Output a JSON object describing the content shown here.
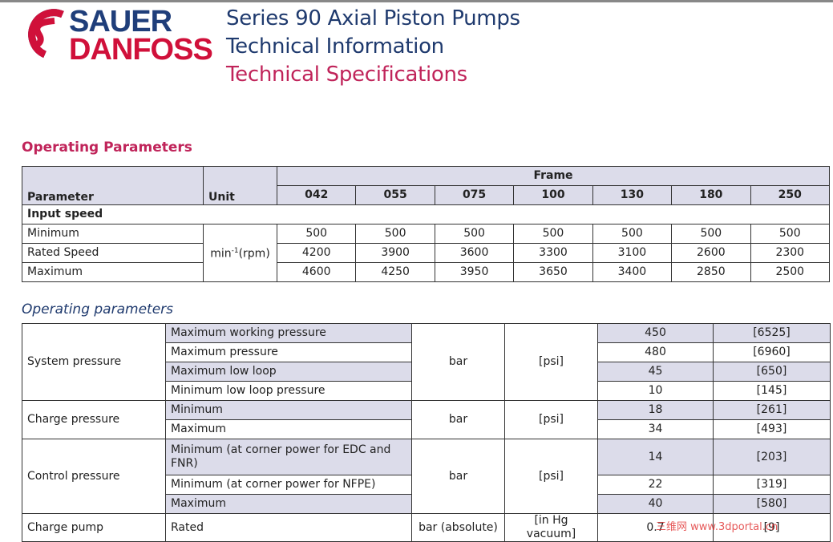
{
  "header": {
    "logo_line1": "SAUER",
    "logo_line2": "DANFOSS",
    "title_line1": "Series 90 Axial Piston Pumps",
    "title_line2": "Technical Information",
    "title_line3": "Technical Specifications"
  },
  "section1": {
    "heading": "Operating Parameters",
    "col_parameter": "Parameter",
    "col_unit": "Unit",
    "frame_label": "Frame",
    "frames": [
      "042",
      "055",
      "075",
      "100",
      "130",
      "180",
      "250"
    ],
    "group": "Input speed",
    "unit": "min",
    "unit_sup": "-1",
    "unit_suffix": "(rpm)",
    "rows": [
      {
        "label": "Minimum",
        "values": [
          500,
          500,
          500,
          500,
          500,
          500,
          500
        ]
      },
      {
        "label": "Rated Speed",
        "values": [
          4200,
          3900,
          3600,
          3300,
          3100,
          2600,
          2300
        ]
      },
      {
        "label": "Maximum",
        "values": [
          4600,
          4250,
          3950,
          3650,
          3400,
          2850,
          2500
        ]
      }
    ]
  },
  "section2": {
    "heading": "Operating parameters",
    "groups": [
      {
        "label": "System pressure",
        "unit": "bar",
        "unit2": "[psi]",
        "rows": [
          {
            "label": "Maximum working pressure",
            "value": 450,
            "value2": "[6525]"
          },
          {
            "label": "Maximum pressure",
            "value": 480,
            "value2": "[6960]"
          },
          {
            "label": "Maximum low loop",
            "value": 45,
            "value2": "[650]"
          },
          {
            "label": "Minimum low loop pressure",
            "value": 10,
            "value2": "[145]"
          }
        ]
      },
      {
        "label": "Charge pressure",
        "unit": "bar",
        "unit2": "[psi]",
        "rows": [
          {
            "label": "Minimum",
            "value": 18,
            "value2": "[261]"
          },
          {
            "label": "Maximum",
            "value": 34,
            "value2": "[493]"
          }
        ]
      },
      {
        "label": "Control pressure",
        "unit": "bar",
        "unit2": "[psi]",
        "rows": [
          {
            "label": "Minimum (at corner power for EDC and FNR)",
            "value": 14,
            "value2": "[203]"
          },
          {
            "label": "Minimum (at corner power for NFPE)",
            "value": 22,
            "value2": "[319]"
          },
          {
            "label": "Maximum",
            "value": 40,
            "value2": "[580]"
          }
        ]
      },
      {
        "label": "Charge pump",
        "unit": "bar (absolute)",
        "unit2": "[in Hg vacuum]",
        "rows": [
          {
            "label": "Rated",
            "value": 0.7,
            "value2": "[9]"
          }
        ]
      }
    ]
  },
  "watermark": "三维网 www.3dportal.cn"
}
